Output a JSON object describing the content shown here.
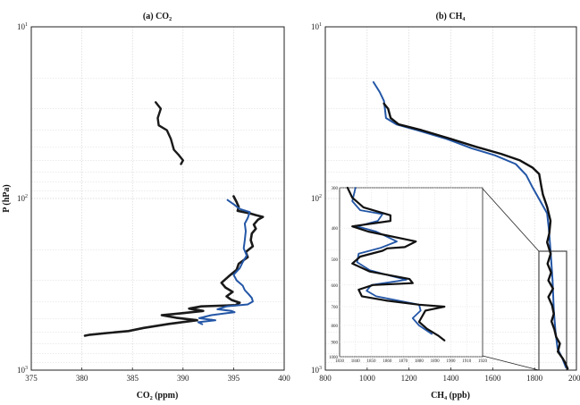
{
  "chart_data": [
    {
      "type": "line",
      "title": "(a) CO",
      "title_sub": "2",
      "xlabel": "CO",
      "xlabel_sub": "2",
      "xlabel_unit": " (ppm)",
      "ylabel": "P (hPa)",
      "xlim": [
        375,
        400
      ],
      "ylim": [
        1000,
        10
      ],
      "yscale": "log",
      "x_ticks": [
        "375",
        "380",
        "385",
        "390",
        "395",
        "400"
      ],
      "y_ticks": [
        {
          "base": "10",
          "exp": "1"
        },
        {
          "base": "10",
          "exp": "2"
        },
        {
          "base": "10",
          "exp": "3"
        }
      ],
      "grid": true,
      "series": [
        {
          "color": "#1a1a1a",
          "width": 2.4,
          "points": [
            [
              387.3,
              27.5
            ],
            [
              387.8,
              30
            ],
            [
              387.5,
              34
            ],
            [
              387.6,
              37.5
            ],
            [
              388.4,
              40
            ],
            [
              388.8,
              45
            ],
            [
              389.1,
              52
            ],
            [
              389.6,
              56
            ],
            [
              390.0,
              60
            ],
            [
              389.8,
              63
            ]
          ]
        },
        {
          "color": "#1a1a1a",
          "width": 2.6,
          "points": [
            [
              395.0,
              97
            ],
            [
              395.3,
              105
            ],
            [
              395.5,
              112
            ],
            [
              395.4,
              118
            ],
            [
              396.6,
              122
            ],
            [
              397.2,
              125
            ],
            [
              397.9,
              128
            ],
            [
              397.4,
              133
            ],
            [
              397.0,
              142
            ],
            [
              397.2,
              150
            ],
            [
              396.8,
              160
            ],
            [
              396.7,
              175
            ],
            [
              396.9,
              190
            ],
            [
              396.2,
              205
            ],
            [
              396.4,
              220
            ],
            [
              395.5,
              240
            ],
            [
              395.3,
              260
            ],
            [
              394.5,
              285
            ],
            [
              393.8,
              310
            ],
            [
              394.2,
              330
            ],
            [
              394.9,
              350
            ],
            [
              394.3,
              372
            ],
            [
              394.8,
              390
            ],
            [
              395.6,
              405
            ],
            [
              395.2,
              418
            ],
            [
              391.8,
              425
            ],
            [
              390.6,
              438
            ],
            [
              392.0,
              452
            ],
            [
              389.6,
              468
            ],
            [
              387.9,
              478
            ],
            [
              389.3,
              495
            ],
            [
              391.4,
              512
            ],
            [
              388.6,
              538
            ],
            [
              386.1,
              568
            ],
            [
              384.6,
              592
            ],
            [
              382.5,
              608
            ],
            [
              380.8,
              622
            ],
            [
              380.3,
              630
            ]
          ]
        },
        {
          "color": "#2356a6",
          "width": 2.0,
          "points": [
            [
              394.4,
              102
            ],
            [
              395.0,
              108
            ],
            [
              395.6,
              115
            ],
            [
              396.6,
              120
            ],
            [
              396.4,
              130
            ],
            [
              396.1,
              140
            ],
            [
              396.2,
              155
            ],
            [
              396.1,
              175
            ],
            [
              396.0,
              195
            ],
            [
              396.3,
              215
            ],
            [
              395.9,
              235
            ],
            [
              395.6,
              255
            ],
            [
              395.0,
              278
            ],
            [
              395.3,
              300
            ],
            [
              395.9,
              322
            ],
            [
              396.1,
              342
            ],
            [
              396.5,
              362
            ],
            [
              396.8,
              380
            ],
            [
              396.9,
              398
            ],
            [
              396.4,
              414
            ],
            [
              394.3,
              425
            ],
            [
              393.4,
              442
            ],
            [
              394.8,
              452
            ],
            [
              395.1,
              460
            ],
            [
              392.8,
              478
            ],
            [
              391.6,
              498
            ],
            [
              393.2,
              512
            ],
            [
              391.5,
              526
            ],
            [
              391.9,
              540
            ]
          ]
        }
      ]
    },
    {
      "type": "line",
      "title": "(b) CH",
      "title_sub": "4",
      "xlabel": "CH",
      "xlabel_sub": "4",
      "xlabel_unit": " (ppb)",
      "xlim": [
        800,
        2000
      ],
      "ylim": [
        1000,
        10
      ],
      "yscale": "log",
      "x_ticks": [
        "800",
        "1000",
        "1200",
        "1400",
        "1600",
        "1800",
        "2000"
      ],
      "y_ticks": [
        {
          "base": "10",
          "exp": "1"
        },
        {
          "base": "10",
          "exp": "2"
        },
        {
          "base": "10",
          "exp": "3"
        }
      ],
      "grid": true,
      "series": [
        {
          "color": "#2356a6",
          "width": 2.0,
          "points": [
            [
              1030,
              21
            ],
            [
              1060,
              24
            ],
            [
              1080,
              27
            ],
            [
              1085,
              30
            ],
            [
              1090,
              34
            ],
            [
              1140,
              37
            ],
            [
              1240,
              40
            ],
            [
              1380,
              45
            ],
            [
              1500,
              51
            ],
            [
              1610,
              56
            ],
            [
              1710,
              63
            ],
            [
              1760,
              73
            ],
            [
              1790,
              86
            ],
            [
              1820,
              100
            ],
            [
              1860,
              122
            ],
            [
              1868,
              150
            ],
            [
              1876,
              200
            ],
            [
              1886,
              300
            ],
            [
              1892,
              450
            ],
            [
              1900,
              600
            ],
            [
              1910,
              750
            ],
            [
              1932,
              850
            ],
            [
              1950,
              965
            ]
          ]
        },
        {
          "color": "#111111",
          "width": 2.4,
          "points": [
            [
              1080,
              28
            ],
            [
              1100,
              30
            ],
            [
              1112,
              34
            ],
            [
              1150,
              37
            ],
            [
              1260,
              40
            ],
            [
              1400,
              45
            ],
            [
              1520,
              50
            ],
            [
              1640,
              55
            ],
            [
              1730,
              60
            ],
            [
              1790,
              66
            ],
            [
              1822,
              72
            ],
            [
              1832,
              85
            ],
            [
              1840,
              95
            ],
            [
              1860,
              112
            ],
            [
              1876,
              135
            ],
            [
              1870,
              160
            ],
            [
              1860,
              180
            ],
            [
              1877,
              210
            ],
            [
              1862,
              240
            ],
            [
              1879,
              270
            ],
            [
              1866,
              300
            ],
            [
              1888,
              335
            ],
            [
              1866,
              375
            ],
            [
              1884,
              420
            ],
            [
              1892,
              470
            ],
            [
              1881,
              520
            ],
            [
              1895,
              580
            ],
            [
              1903,
              640
            ],
            [
              1921,
              700
            ],
            [
              1911,
              780
            ],
            [
              1933,
              850
            ],
            [
              1945,
              900
            ],
            [
              1958,
              980
            ]
          ]
        }
      ],
      "inset": {
        "xlim": [
          1830,
          1920
        ],
        "ylim": [
          1000,
          300
        ],
        "x_ticks": [
          "1830",
          "1840",
          "1850",
          "1860",
          "1870",
          "1880",
          "1890",
          "1900",
          "1910",
          "1920"
        ],
        "y_ticks": [
          "300",
          "400",
          "500",
          "600",
          "700",
          "800",
          "900",
          "1000"
        ],
        "series": [
          {
            "color": "#2356a6",
            "width": 1.8,
            "points": [
              [
                1840,
                300
              ],
              [
                1838,
                330
              ],
              [
                1843,
                352
              ],
              [
                1857,
                362
              ],
              [
                1854,
                380
              ],
              [
                1841,
                395
              ],
              [
                1853,
                410
              ],
              [
                1866,
                440
              ],
              [
                1856,
                460
              ],
              [
                1842,
                480
              ],
              [
                1841,
                510
              ],
              [
                1849,
                540
              ],
              [
                1862,
                562
              ],
              [
                1872,
                578
              ],
              [
                1850,
                600
              ],
              [
                1847,
                625
              ],
              [
                1853,
                650
              ],
              [
                1868,
                672
              ],
              [
                1880,
                690
              ],
              [
                1881,
                720
              ],
              [
                1876,
                760
              ],
              [
                1880,
                800
              ],
              [
                1888,
                850
              ]
            ]
          },
          {
            "color": "#111111",
            "width": 2.2,
            "points": [
              [
                1835,
                300
              ],
              [
                1838,
                322
              ],
              [
                1845,
                345
              ],
              [
                1862,
                365
              ],
              [
                1862,
                380
              ],
              [
                1838,
                395
              ],
              [
                1848,
                410
              ],
              [
                1878,
                440
              ],
              [
                1871,
                458
              ],
              [
                1860,
                462
              ],
              [
                1857,
                470
              ],
              [
                1843,
                490
              ],
              [
                1838,
                515
              ],
              [
                1849,
                545
              ],
              [
                1874,
                575
              ],
              [
                1876,
                592
              ],
              [
                1851,
                600
              ],
              [
                1842,
                620
              ],
              [
                1844,
                650
              ],
              [
                1859,
                670
              ],
              [
                1880,
                690
              ],
              [
                1896,
                700
              ],
              [
                1884,
                720
              ],
              [
                1880,
                780
              ],
              [
                1885,
                820
              ],
              [
                1892,
                860
              ],
              [
                1896,
                890
              ]
            ]
          }
        ]
      }
    }
  ]
}
